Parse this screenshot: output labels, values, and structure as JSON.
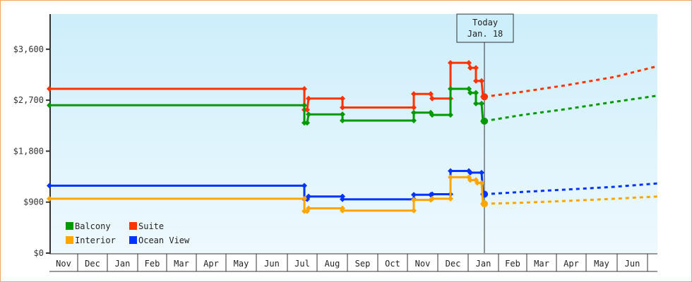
{
  "chart_data": {
    "type": "line",
    "title": "",
    "xlabel": "",
    "ylabel": "",
    "ylim": [
      0,
      4200
    ],
    "y_ticks": [
      "$0",
      "$900",
      "$1,800",
      "$2,700",
      "$3,600"
    ],
    "y_tick_values": [
      0,
      900,
      1800,
      2700,
      3600
    ],
    "x_months": [
      "Nov",
      "Dec",
      "Jan",
      "Feb",
      "Mar",
      "Apr",
      "May",
      "Jun",
      "Jul",
      "Aug",
      "Sep",
      "Oct",
      "Nov",
      "Dec",
      "Jan",
      "Feb",
      "Mar",
      "Apr",
      "May",
      "Jun",
      ""
    ],
    "today_marker": {
      "line1": "Today",
      "line2": "Jan. 18",
      "x": 686
    },
    "legend": [
      {
        "name": "Balcony",
        "color": "#009900"
      },
      {
        "name": "Suite",
        "color": "#ff3300"
      },
      {
        "name": "Interior",
        "color": "#ffa500"
      },
      {
        "name": "Ocean View",
        "color": "#0033ff"
      }
    ],
    "grid": false,
    "series": [
      {
        "name": "Suite",
        "color": "#ff3300",
        "points": [
          [
            70,
            2900
          ],
          [
            431,
            2900
          ],
          [
            431,
            2530
          ],
          [
            435,
            2530
          ],
          [
            437,
            2730
          ],
          [
            485,
            2730
          ],
          [
            485,
            2570
          ],
          [
            586,
            2570
          ],
          [
            586,
            2810
          ],
          [
            610,
            2810
          ],
          [
            612,
            2730
          ],
          [
            638,
            2730
          ],
          [
            638,
            3360
          ],
          [
            664,
            3360
          ],
          [
            666,
            3270
          ],
          [
            674,
            3270
          ],
          [
            674,
            3040
          ],
          [
            682,
            3040
          ],
          [
            684,
            2760
          ]
        ],
        "forecast": [
          [
            686,
            2760
          ],
          [
            740,
            2850
          ],
          [
            800,
            2960
          ],
          [
            870,
            3110
          ],
          [
            931,
            3300
          ]
        ]
      },
      {
        "name": "Balcony",
        "color": "#009900",
        "points": [
          [
            70,
            2610
          ],
          [
            431,
            2610
          ],
          [
            431,
            2300
          ],
          [
            435,
            2300
          ],
          [
            437,
            2450
          ],
          [
            485,
            2450
          ],
          [
            485,
            2340
          ],
          [
            586,
            2340
          ],
          [
            586,
            2480
          ],
          [
            610,
            2480
          ],
          [
            612,
            2440
          ],
          [
            638,
            2440
          ],
          [
            638,
            2900
          ],
          [
            664,
            2900
          ],
          [
            666,
            2830
          ],
          [
            674,
            2830
          ],
          [
            674,
            2640
          ],
          [
            682,
            2640
          ],
          [
            684,
            2330
          ]
        ],
        "forecast": [
          [
            686,
            2330
          ],
          [
            740,
            2440
          ],
          [
            800,
            2540
          ],
          [
            870,
            2670
          ],
          [
            931,
            2780
          ]
        ]
      },
      {
        "name": "Ocean View",
        "color": "#0033ff",
        "points": [
          [
            70,
            1190
          ],
          [
            431,
            1190
          ],
          [
            431,
            950
          ],
          [
            435,
            950
          ],
          [
            437,
            1000
          ],
          [
            485,
            1000
          ],
          [
            485,
            950
          ],
          [
            586,
            950
          ],
          [
            586,
            1030
          ],
          [
            610,
            1030
          ],
          [
            612,
            1040
          ],
          [
            638,
            1040
          ],
          [
            638,
            1450
          ],
          [
            664,
            1450
          ],
          [
            666,
            1420
          ],
          [
            682,
            1420
          ],
          [
            684,
            1040
          ]
        ],
        "forecast": [
          [
            686,
            1040
          ],
          [
            740,
            1080
          ],
          [
            800,
            1120
          ],
          [
            870,
            1170
          ],
          [
            931,
            1230
          ]
        ]
      },
      {
        "name": "Interior",
        "color": "#ffa500",
        "points": [
          [
            70,
            960
          ],
          [
            431,
            960
          ],
          [
            431,
            740
          ],
          [
            435,
            740
          ],
          [
            437,
            790
          ],
          [
            485,
            790
          ],
          [
            485,
            750
          ],
          [
            586,
            750
          ],
          [
            586,
            940
          ],
          [
            610,
            940
          ],
          [
            612,
            960
          ],
          [
            638,
            960
          ],
          [
            638,
            1340
          ],
          [
            664,
            1340
          ],
          [
            666,
            1290
          ],
          [
            674,
            1290
          ],
          [
            676,
            1240
          ],
          [
            682,
            1240
          ],
          [
            684,
            870
          ]
        ],
        "forecast": [
          [
            686,
            870
          ],
          [
            740,
            890
          ],
          [
            800,
            920
          ],
          [
            870,
            960
          ],
          [
            931,
            1000
          ]
        ]
      }
    ]
  }
}
